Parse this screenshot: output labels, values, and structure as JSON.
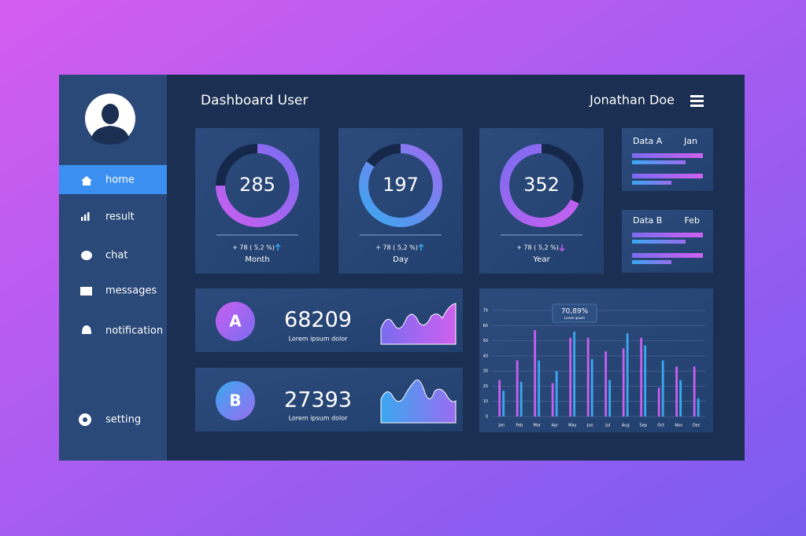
{
  "header": {
    "title": "Dashboard User",
    "user": "Jonathan Doe"
  },
  "sidebar": {
    "items": [
      "home",
      "result",
      "chat",
      "messages",
      "notification"
    ],
    "setting": "setting"
  },
  "stats": [
    {
      "value": 285,
      "change": "+ 78 ( 5,2 %)",
      "period": "Month"
    },
    {
      "value": 197,
      "change": "+ 78 ( 5,2 %)",
      "period": "Day"
    },
    {
      "value": 352,
      "change": "+ 78 ( 5,2 %)",
      "period": "Year"
    }
  ],
  "data_cards": [
    {
      "label": "Data A",
      "month": "Jan"
    },
    {
      "label": "Data B",
      "month": "Feb"
    }
  ],
  "summary": [
    {
      "letter": "A",
      "value": 68209,
      "caption": "Lorem ipsum dolor"
    },
    {
      "letter": "B",
      "value": 27393,
      "caption": "Lorem ipsum dolor"
    }
  ],
  "chart_data": {
    "type": "bar",
    "categories": [
      "Jan",
      "Feb",
      "Mar",
      "Apr",
      "May",
      "Jun",
      "Jul",
      "Aug",
      "Sep",
      "Oct",
      "Nov",
      "Dec"
    ],
    "series": [
      {
        "color": "#c85ff0",
        "values": [
          24,
          37,
          57,
          22,
          52,
          52,
          43,
          45,
          52,
          19,
          33,
          33
        ]
      },
      {
        "color": "#3aa8f0",
        "values": [
          17,
          23,
          37,
          30,
          56,
          38,
          24,
          55,
          47,
          37,
          24,
          12
        ]
      }
    ],
    "ylim": [
      0,
      70
    ],
    "yticks": [
      0,
      10,
      20,
      30,
      40,
      50,
      60,
      70
    ],
    "grid": true,
    "tooltip": {
      "label": "70,89%",
      "caption": "Lorem ipsum"
    }
  }
}
